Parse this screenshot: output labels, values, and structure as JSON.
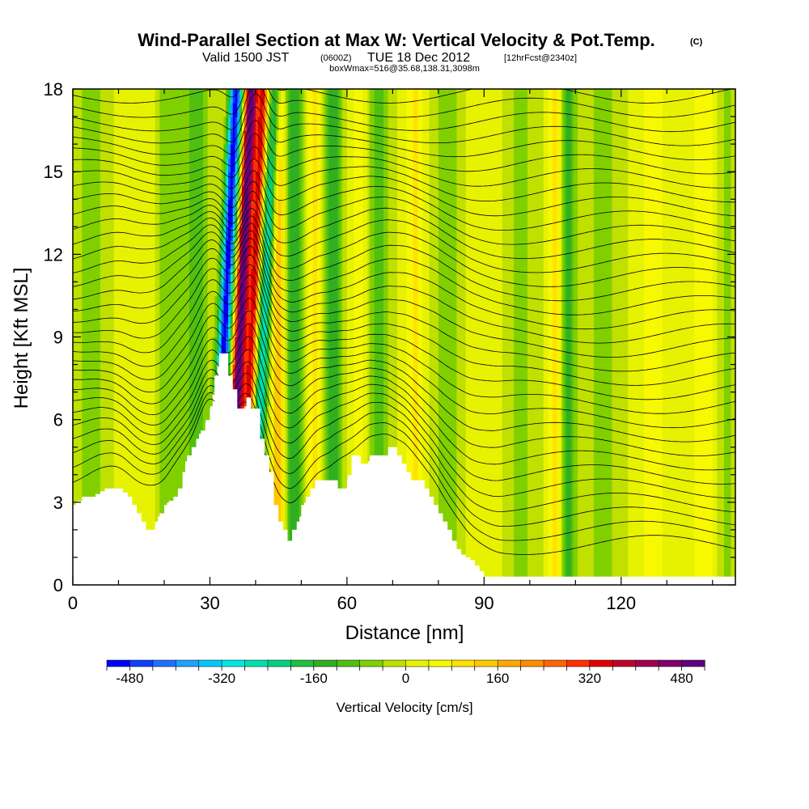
{
  "header": {
    "title": "Wind-Parallel Section at Max W: Vertical Velocity & Pot.Temp.",
    "title_mark": "(C)",
    "subtitle_valid": "Valid 1500 JST",
    "subtitle_z": "(0600Z)",
    "subtitle_date": "TUE 18 Dec 2012",
    "subtitle_fcst": "[12hrFcst@2340z]",
    "boxline": "boxWmax=516@35.68,138.31,3098m"
  },
  "chart_data": {
    "type": "heatmap",
    "title": "Wind-Parallel Section at Max W: Vertical Velocity & Pot.Temp.",
    "xlabel": "Distance [nm]",
    "ylabel": "Height [Kft MSL]",
    "xlim": [
      0,
      145
    ],
    "ylim": [
      0,
      18
    ],
    "x_ticks": [
      0,
      30,
      60,
      90,
      120
    ],
    "y_ticks": [
      0,
      3,
      6,
      9,
      12,
      15,
      18
    ],
    "x_tick_labels": [
      "0",
      "30",
      "60",
      "90",
      "120"
    ],
    "y_tick_labels": [
      "0",
      "3",
      "6",
      "9",
      "12",
      "15",
      "18"
    ],
    "colorbar": {
      "label": "Vertical Velocity [cm/s]",
      "min": -520,
      "max": 520,
      "tick_values": [
        -480,
        -320,
        -160,
        0,
        160,
        320,
        480
      ],
      "tick_labels": [
        "-480",
        "-320",
        "-160",
        "0",
        "160",
        "320",
        "480"
      ],
      "colors": [
        "#0000ff",
        "#1040ff",
        "#1f70ff",
        "#20a0ff",
        "#00c8ff",
        "#00e6e6",
        "#00e0b0",
        "#00d080",
        "#20c040",
        "#30b020",
        "#50c010",
        "#80d000",
        "#c0e000",
        "#e6f200",
        "#f8f800",
        "#ffe200",
        "#ffc800",
        "#ffa800",
        "#ff8c00",
        "#ff6400",
        "#ff3000",
        "#e00000",
        "#c00030",
        "#a00050",
        "#800070",
        "#600080"
      ]
    },
    "terrain_profile": {
      "x": [
        0,
        2,
        4,
        7,
        10,
        12,
        14,
        15,
        16,
        17,
        18,
        19,
        20,
        22,
        23,
        24,
        25,
        26,
        27,
        28,
        29,
        30,
        31,
        32,
        33,
        34,
        35,
        36,
        37,
        38,
        39,
        40,
        41,
        42,
        43,
        44,
        45,
        46,
        47,
        48,
        49,
        50,
        51,
        52,
        53,
        54,
        55,
        56,
        57,
        58,
        59,
        60,
        61,
        62,
        63,
        64,
        65,
        66,
        67,
        68,
        69,
        70,
        71,
        72,
        73,
        74,
        75,
        76,
        77,
        78,
        79,
        80,
        81,
        82,
        83,
        84,
        85,
        86,
        87,
        88,
        89,
        90,
        145
      ],
      "y": [
        2.9,
        3.2,
        3.2,
        3.5,
        3.5,
        3.2,
        2.6,
        2.3,
        2.0,
        2.0,
        2.3,
        2.6,
        2.9,
        3.2,
        3.5,
        4.1,
        4.7,
        5.0,
        5.3,
        5.6,
        5.9,
        6.4,
        7.6,
        8.4,
        8.4,
        7.6,
        7.1,
        6.4,
        6.4,
        6.8,
        6.4,
        6.4,
        5.3,
        4.7,
        4.1,
        2.9,
        2.3,
        2.0,
        1.6,
        2.0,
        2.3,
        2.9,
        3.2,
        3.5,
        3.8,
        3.8,
        3.8,
        3.8,
        3.8,
        3.5,
        3.5,
        3.8,
        4.7,
        4.7,
        4.4,
        4.4,
        4.7,
        4.7,
        4.7,
        4.7,
        5.0,
        5.0,
        4.7,
        4.4,
        4.1,
        3.8,
        3.8,
        3.8,
        3.5,
        3.2,
        2.9,
        2.6,
        2.3,
        2.0,
        1.6,
        1.3,
        1.1,
        1.0,
        0.9,
        0.7,
        0.5,
        0.3,
        0.3
      ]
    },
    "w_bands": [
      {
        "x": 4,
        "w": 2.5,
        "amp": -70
      },
      {
        "x": 15,
        "w": 3,
        "amp": 40
      },
      {
        "x": 21,
        "w": 2.5,
        "amp": -80
      },
      {
        "x": 27,
        "w": 2.5,
        "amp": -110
      },
      {
        "x": 33.2,
        "w": 1.4,
        "amp": -520
      },
      {
        "x": 36.6,
        "w": 1.4,
        "amp": 520
      },
      {
        "x": 39.2,
        "w": 1.2,
        "amp": 330
      },
      {
        "x": 41.8,
        "w": 1.3,
        "amp": -280
      },
      {
        "x": 45,
        "w": 1.5,
        "amp": 160
      },
      {
        "x": 48.5,
        "w": 2,
        "amp": -160
      },
      {
        "x": 53,
        "w": 1.8,
        "amp": 90
      },
      {
        "x": 57,
        "w": 2,
        "amp": -150
      },
      {
        "x": 62.5,
        "w": 2,
        "amp": 60
      },
      {
        "x": 67,
        "w": 2,
        "amp": -110
      },
      {
        "x": 75,
        "w": 2,
        "amp": 90
      },
      {
        "x": 82,
        "w": 3,
        "amp": -60
      },
      {
        "x": 90,
        "w": 3,
        "amp": 40
      },
      {
        "x": 98,
        "w": 3,
        "amp": -55
      },
      {
        "x": 105.5,
        "w": 1.3,
        "amp": 110
      },
      {
        "x": 108.5,
        "w": 1.6,
        "amp": -140
      },
      {
        "x": 116,
        "w": 3,
        "amp": -60
      },
      {
        "x": 127,
        "w": 3,
        "amp": 60
      },
      {
        "x": 138,
        "w": 3,
        "amp": 70
      },
      {
        "x": 143,
        "w": 2,
        "amp": -50
      }
    ]
  }
}
